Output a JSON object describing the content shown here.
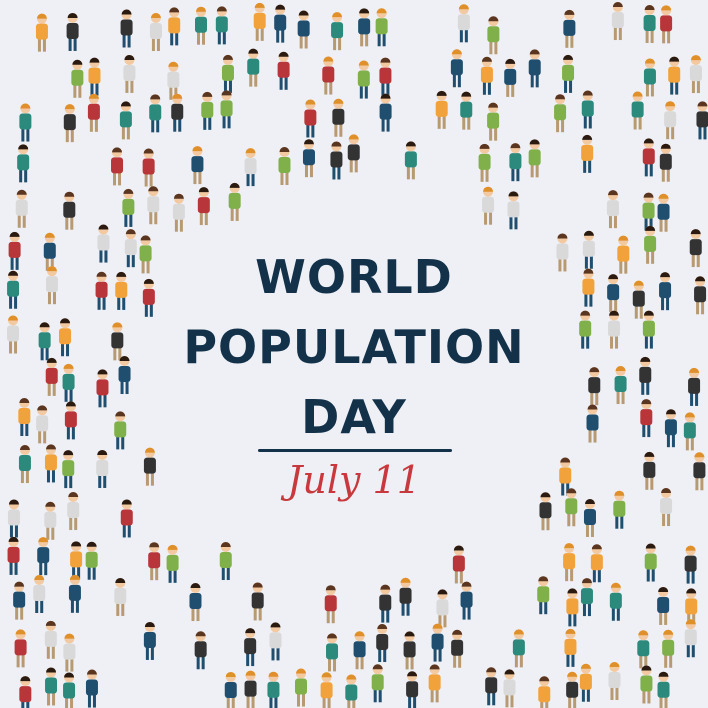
{
  "poster": {
    "title_line1": "WORLD",
    "title_line2": "POPULATION",
    "title_line3": "DAY",
    "date": "July 11"
  },
  "colors": {
    "background": "#eef0f6",
    "title": "#13324a",
    "date": "#c8383c",
    "clothing": [
      "#b8353a",
      "#1f4e6e",
      "#f2a23a",
      "#2c8a7c",
      "#d9d9d9",
      "#333333",
      "#7fb04a"
    ],
    "skin": "#f2c9a0",
    "hair": [
      "#5a3520",
      "#2b1a10",
      "#e0902a"
    ]
  },
  "illustration": {
    "crowd_icon": "people-crowd-ring"
  }
}
